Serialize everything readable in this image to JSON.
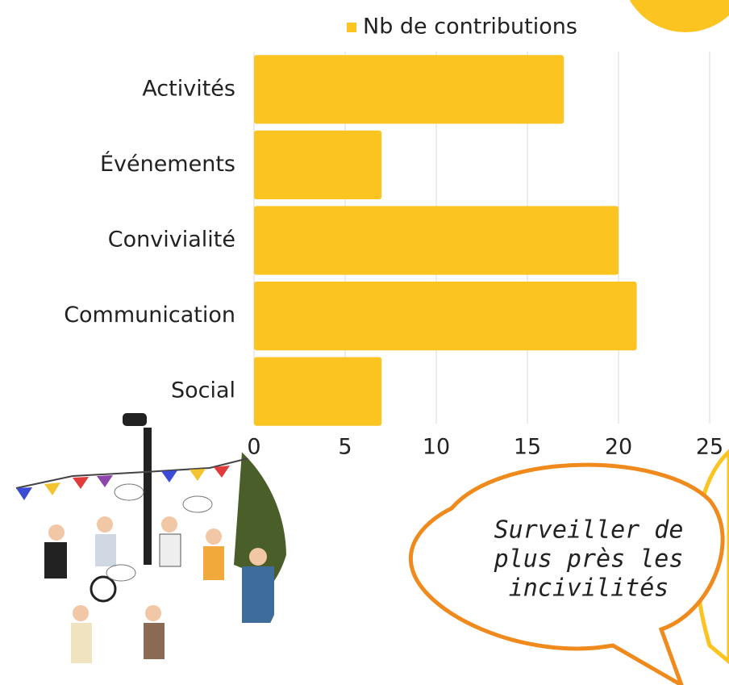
{
  "chart_data": {
    "type": "bar",
    "orientation": "horizontal",
    "categories": [
      "Activités",
      "Événements",
      "Convivialité",
      "Communication",
      "Social"
    ],
    "series": [
      {
        "name": "Nb de contributions",
        "color": "#fcc420",
        "values": [
          17,
          7,
          20,
          21,
          7
        ]
      }
    ],
    "xlim": [
      0,
      25
    ],
    "xticks": [
      0,
      5,
      10,
      15,
      20,
      25
    ],
    "grid": true,
    "legend": "top",
    "annotations": [
      "Surveiller de",
      "plus près les",
      "incivilités"
    ]
  }
}
